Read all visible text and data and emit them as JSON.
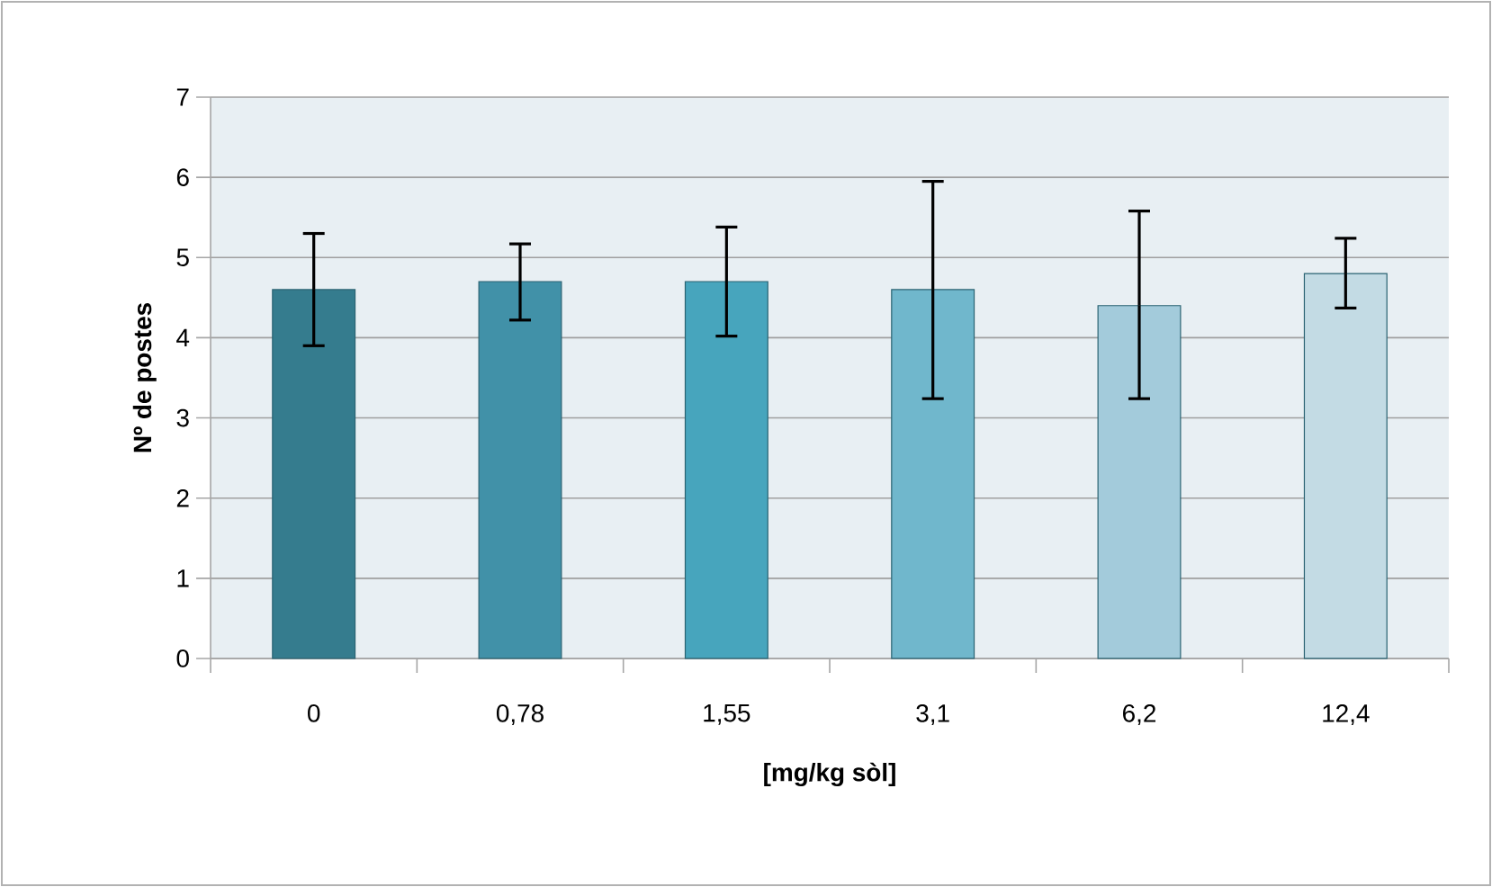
{
  "chart_data": {
    "type": "bar",
    "xlabel": "[mg/kg sòl]",
    "ylabel": "Nº de postes",
    "categories": [
      "0",
      "0,78",
      "1,55",
      "3,1",
      "6,2",
      "12,4"
    ],
    "values": [
      4.6,
      4.7,
      4.7,
      4.6,
      4.4,
      4.8
    ],
    "errors": [
      [
        3.9,
        5.3
      ],
      [
        4.22,
        5.17
      ],
      [
        4.02,
        5.38
      ],
      [
        3.24,
        5.95
      ],
      [
        3.24,
        5.58
      ],
      [
        4.37,
        5.24
      ]
    ],
    "colors": [
      "#357c8e",
      "#4191a8",
      "#47a5bd",
      "#70b7cc",
      "#a3cbdb",
      "#c3dbe4"
    ],
    "ylim": [
      0,
      7
    ],
    "yticks": [
      0,
      1,
      2,
      3,
      4,
      5,
      6,
      7
    ],
    "grid": "y"
  }
}
